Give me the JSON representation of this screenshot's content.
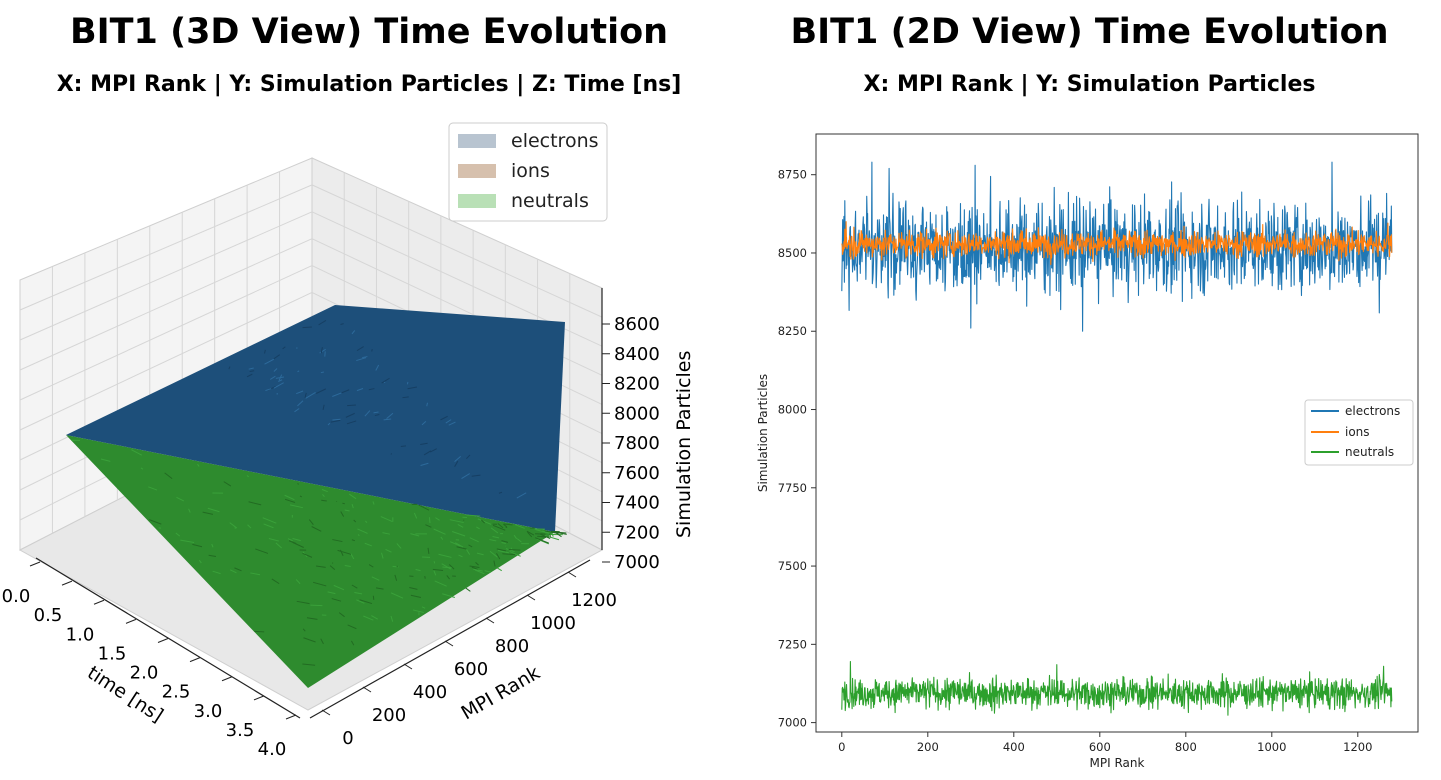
{
  "left": {
    "title": "BIT1 (3D View) Time Evolution",
    "subtitle": "X: MPI Rank | Y: Simulation Particles | Z: Time [ns]"
  },
  "right": {
    "title": "BIT1 (2D View) Time Evolution",
    "subtitle": "X: MPI Rank | Y: Simulation Particles"
  },
  "chart_data": [
    {
      "type": "area",
      "view": "3d-surface",
      "title": "BIT1 (3D View) Time Evolution",
      "series": [
        {
          "name": "electrons",
          "color": "#1f5c8c",
          "start_value": 7850,
          "end_value_range": [
            8300,
            8600
          ]
        },
        {
          "name": "ions",
          "color": "#d2a98a",
          "start_value": 7850,
          "end_value_range": [
            8450,
            8600
          ]
        },
        {
          "name": "neutrals",
          "color": "#2e8b2e",
          "start_value": 7850,
          "end_value_range": [
            7050,
            7150
          ]
        }
      ],
      "legend": [
        "electrons",
        "ions",
        "neutrals"
      ],
      "legend_position": "top-right",
      "time_axis": {
        "label": "time [ns]",
        "range": [
          0.0,
          4.0
        ],
        "ticks": [
          "0.0",
          "0.5",
          "1.0",
          "1.5",
          "2.0",
          "2.5",
          "3.0",
          "3.5",
          "4.0"
        ]
      },
      "rank_axis": {
        "label": "MPI Rank",
        "range": [
          0,
          1280
        ],
        "ticks": [
          "0",
          "200",
          "400",
          "600",
          "800",
          "1000",
          "1200"
        ]
      },
      "particle_axis": {
        "label": "Simulation Particles",
        "range": [
          7000,
          8700
        ],
        "ticks": [
          "7000",
          "7200",
          "7400",
          "7600",
          "7800",
          "8000",
          "8200",
          "8400",
          "8600"
        ]
      }
    },
    {
      "type": "line",
      "title": "BIT1 (2D View) Time Evolution",
      "xlabel": "MPI Rank",
      "ylabel": "Simulation Particles",
      "xlim": [
        -60,
        1340
      ],
      "ylim": [
        6970,
        8880
      ],
      "xticks": [
        0,
        200,
        400,
        600,
        800,
        1000,
        1200
      ],
      "yticks": [
        7000,
        7250,
        7500,
        7750,
        8000,
        8250,
        8500,
        8750
      ],
      "legend_position": "center-right",
      "series": [
        {
          "name": "electrons",
          "color": "#1f77b4",
          "n": 1280,
          "mean": 8520,
          "std": 75,
          "spikes": [
            [
              70,
              8790
            ],
            [
              110,
              8770
            ],
            [
              310,
              8780
            ],
            [
              1140,
              8790
            ],
            [
              300,
              8260
            ],
            [
              560,
              8250
            ],
            [
              430,
              8330
            ]
          ]
        },
        {
          "name": "ions",
          "color": "#ff7f0e",
          "n": 1280,
          "mean": 8530,
          "std": 22,
          "spikes": [
            [
              10,
              8600
            ],
            [
              1270,
              8595
            ]
          ]
        },
        {
          "name": "neutrals",
          "color": "#2ca02c",
          "n": 1280,
          "mean": 7095,
          "std": 25,
          "spikes": [
            [
              20,
              7195
            ],
            [
              500,
              7185
            ],
            [
              1260,
              7180
            ],
            [
              355,
              7030
            ],
            [
              1170,
              7035
            ]
          ]
        }
      ]
    }
  ]
}
